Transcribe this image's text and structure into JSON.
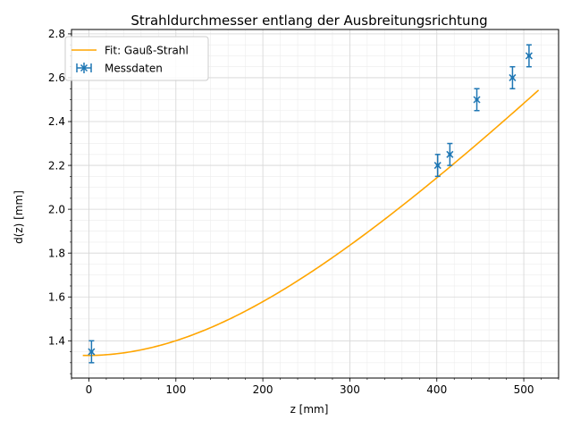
{
  "chart_data": {
    "type": "scatter",
    "title": "Strahldurchmesser entlang der Ausbreitungsrichtung",
    "xlabel": "z [mm]",
    "ylabel": "d(z) [mm]",
    "xlim": [
      -20,
      540
    ],
    "ylim": [
      1.23,
      2.82
    ],
    "x_ticks": [
      0,
      100,
      200,
      300,
      400,
      500
    ],
    "y_ticks": [
      1.4,
      1.6,
      1.8,
      2.0,
      2.2,
      2.4,
      2.6,
      2.8
    ],
    "x_tick_labels": [
      "0",
      "100",
      "200",
      "300",
      "400",
      "500"
    ],
    "y_tick_labels": [
      "1.4",
      "1.6",
      "1.8",
      "2.0",
      "2.2",
      "2.4",
      "2.6",
      "2.8"
    ],
    "minor_ticks": true,
    "grid": "major-and-minor",
    "legend_position": "top-left",
    "series": [
      {
        "name": "Fit: Gauß-Strahl",
        "kind": "line",
        "color": "#ffa500",
        "model": {
          "d0": 1.333,
          "z0": -3,
          "zR": 320
        },
        "x_range": [
          -7,
          517
        ]
      },
      {
        "name": "Messdaten",
        "kind": "errorbar",
        "color": "#1f77b4",
        "marker": "x",
        "x": [
          3,
          401,
          415,
          446,
          487,
          506
        ],
        "y": [
          1.35,
          2.2,
          2.25,
          2.5,
          2.6,
          2.7
        ],
        "yerr": [
          0.05,
          0.05,
          0.05,
          0.05,
          0.05,
          0.05
        ],
        "xerr": [
          2,
          2,
          2,
          2,
          2,
          2
        ]
      }
    ]
  }
}
